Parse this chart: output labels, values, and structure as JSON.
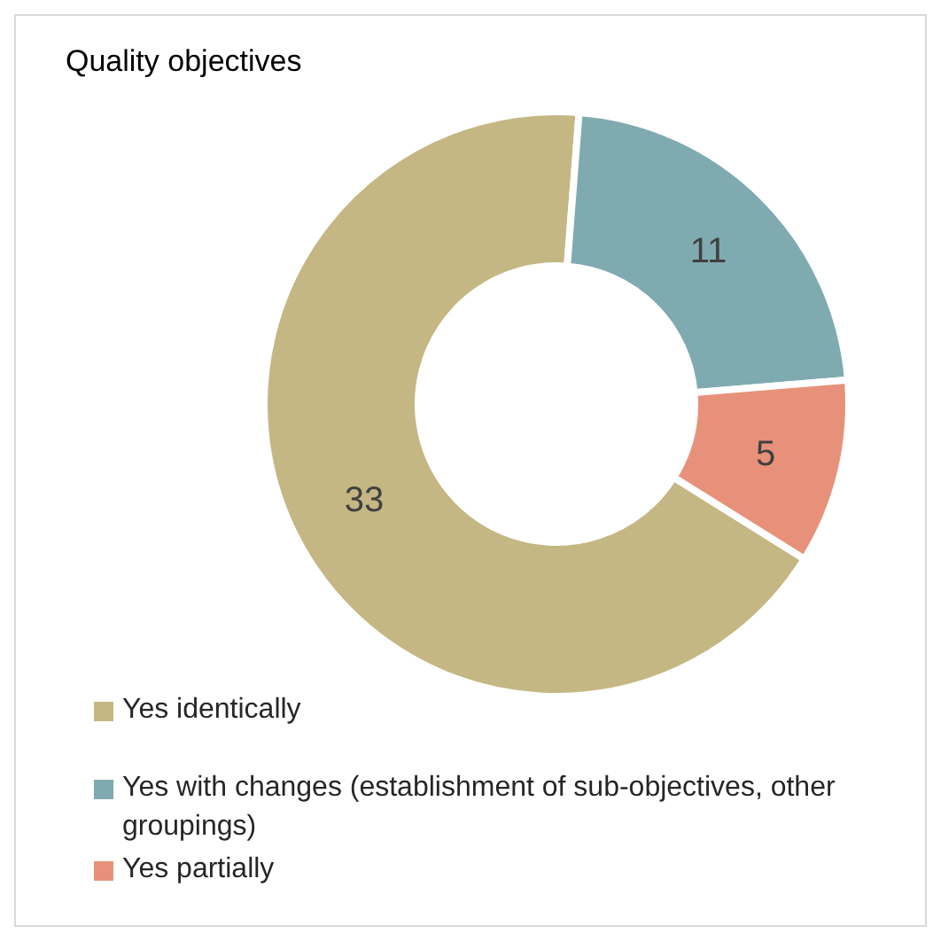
{
  "chart_data": {
    "type": "donut",
    "title": "Quality objectives",
    "categories": [
      "Yes identically",
      "Yes with changes (establishment of sub-objectives, other groupings)",
      "Yes partially"
    ],
    "values": [
      33,
      11,
      5
    ],
    "colors": [
      "#c4b783",
      "#7faab0",
      "#e8917a"
    ],
    "data_labels": true,
    "legend": "bottom left"
  }
}
